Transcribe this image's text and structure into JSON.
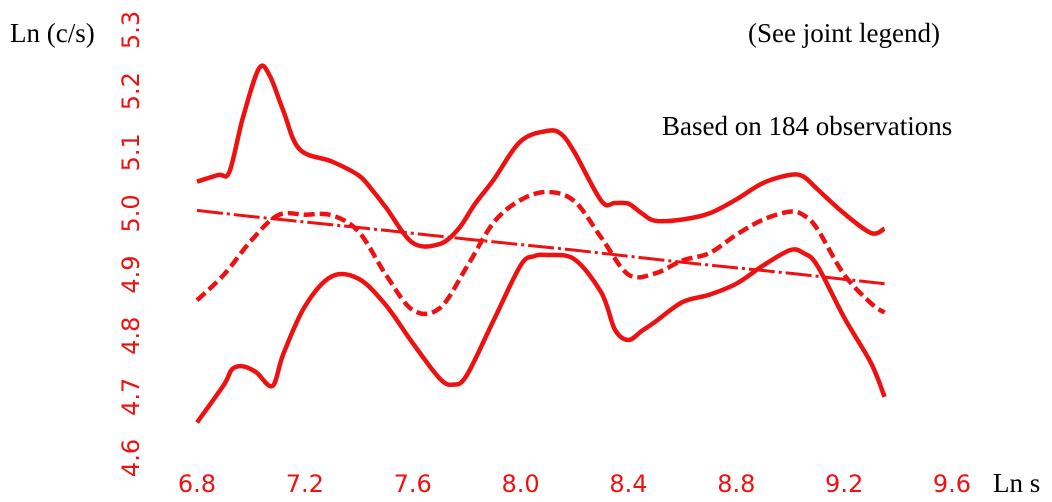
{
  "chart_data": {
    "type": "line",
    "title": "",
    "xlabel": "Ln s",
    "ylabel": "Ln (c/s)",
    "annotations": {
      "legend_note": "(See joint legend)",
      "observations": "Based on 184 observations"
    },
    "xlim": [
      6.8,
      9.6
    ],
    "ylim": [
      4.6,
      5.3
    ],
    "xticks": [
      "6.8",
      "7.2",
      "7.6",
      "8.0",
      "8.4",
      "8.8",
      "9.2",
      "9.6"
    ],
    "yticks": [
      "4.6",
      "4.7",
      "4.8",
      "4.9",
      "5.0",
      "5.1",
      "5.2",
      "5.3"
    ],
    "grid": false,
    "color": "#ee1111",
    "series": [
      {
        "style": "solid",
        "x": [
          6.8,
          6.88,
          6.92,
          6.97,
          7.03,
          7.07,
          7.12,
          7.18,
          7.3,
          7.4,
          7.45,
          7.5,
          7.6,
          7.7,
          7.77,
          7.83,
          7.9,
          8.0,
          8.1,
          8.15,
          8.2,
          8.3,
          8.35,
          8.4,
          8.45,
          8.5,
          8.6,
          8.7,
          8.8,
          8.9,
          9.0,
          9.05,
          9.1,
          9.2,
          9.3,
          9.35
        ],
        "y": [
          5.052,
          5.063,
          5.068,
          5.156,
          5.237,
          5.225,
          5.168,
          5.105,
          5.085,
          5.062,
          5.038,
          5.01,
          4.952,
          4.95,
          4.975,
          5.015,
          5.055,
          5.118,
          5.135,
          5.13,
          5.1,
          5.02,
          5.017,
          5.016,
          5.0,
          4.988,
          4.99,
          5.0,
          5.023,
          5.05,
          5.063,
          5.06,
          5.04,
          5.0,
          4.968,
          4.975
        ]
      },
      {
        "style": "dashed",
        "x": [
          6.8,
          6.9,
          7.0,
          7.1,
          7.2,
          7.3,
          7.4,
          7.5,
          7.6,
          7.7,
          7.8,
          7.9,
          8.0,
          8.1,
          8.2,
          8.3,
          8.4,
          8.5,
          8.6,
          8.7,
          8.8,
          8.9,
          9.0,
          9.05,
          9.1,
          9.2,
          9.3,
          9.35
        ],
        "y": [
          4.858,
          4.9,
          4.955,
          4.997,
          4.998,
          4.997,
          4.97,
          4.9,
          4.842,
          4.845,
          4.912,
          4.985,
          5.022,
          5.035,
          5.02,
          4.96,
          4.9,
          4.902,
          4.923,
          4.935,
          4.965,
          4.99,
          5.003,
          4.997,
          4.975,
          4.9,
          4.853,
          4.838
        ]
      },
      {
        "style": "solid",
        "x": [
          6.8,
          6.9,
          6.93,
          6.97,
          7.02,
          7.08,
          7.12,
          7.2,
          7.3,
          7.4,
          7.5,
          7.6,
          7.7,
          7.75,
          7.8,
          7.9,
          8.0,
          8.05,
          8.1,
          8.2,
          8.3,
          8.35,
          8.4,
          8.45,
          8.5,
          8.6,
          8.7,
          8.8,
          8.9,
          9.0,
          9.05,
          9.1,
          9.2,
          9.3,
          9.35
        ],
        "y": [
          4.658,
          4.72,
          4.745,
          4.75,
          4.74,
          4.718,
          4.77,
          4.848,
          4.897,
          4.893,
          4.85,
          4.788,
          4.73,
          4.72,
          4.735,
          4.825,
          4.915,
          4.93,
          4.932,
          4.925,
          4.87,
          4.81,
          4.793,
          4.808,
          4.823,
          4.855,
          4.867,
          4.885,
          4.915,
          4.94,
          4.935,
          4.915,
          4.83,
          4.755,
          4.7
        ]
      },
      {
        "style": "dashdot",
        "x": [
          6.8,
          7.0,
          7.4,
          7.8,
          8.2,
          8.6,
          9.0,
          9.35
        ],
        "y": [
          5.005,
          4.995,
          4.977,
          4.958,
          4.94,
          4.92,
          4.902,
          4.885
        ]
      }
    ]
  }
}
